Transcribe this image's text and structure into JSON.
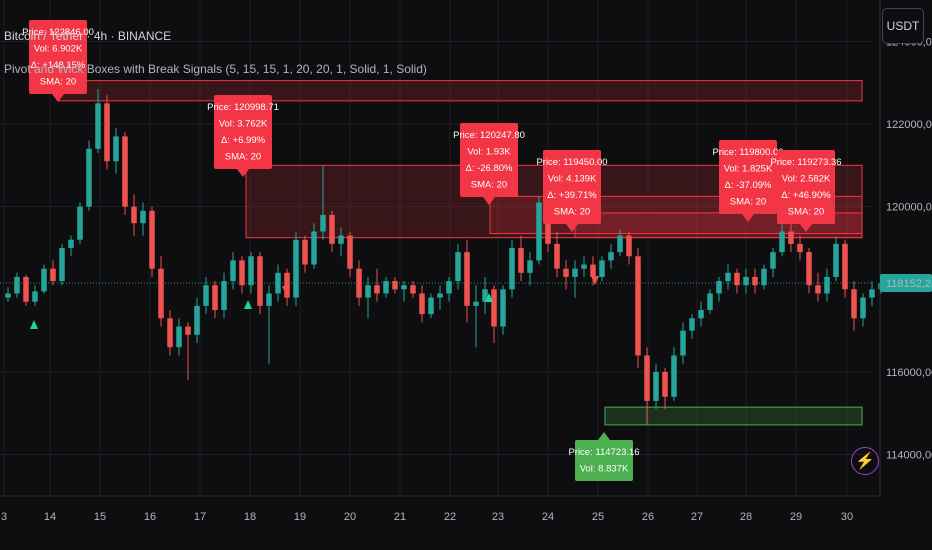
{
  "header": {
    "title": "Bitcoin / Tether · 4h · BINANCE",
    "study": "Pivot and Wick Boxes with Break Signals (5, 15, 15, 1, 20, 20, 1, Solid, 1, Solid)"
  },
  "currency_button": "USDT",
  "last_price": "118152,24",
  "colors": {
    "up": "#26a69a",
    "down": "#ef5350",
    "label_red": "#f23645",
    "label_green": "#4caf50",
    "accent": "#9c3fd1"
  },
  "icons": [
    "lightning-icon"
  ],
  "chart_data": {
    "type": "candlestick",
    "ylim": [
      113000,
      125000
    ],
    "y_ticks": [
      "124000,00",
      "122000,00",
      "120000,00",
      "116000,00",
      "114000,00"
    ],
    "x_ticks": [
      "3",
      "14",
      "15",
      "16",
      "17",
      "18",
      "19",
      "20",
      "21",
      "22",
      "23",
      "24",
      "25",
      "26",
      "27",
      "28",
      "29",
      "30"
    ],
    "pivot_labels": [
      {
        "type": "high",
        "lines": [
          "Price: 122846.00",
          "Vol: 6.902K",
          "Δ: +148.15%",
          "SMA: 20"
        ]
      },
      {
        "type": "high",
        "lines": [
          "Price: 120998.71",
          "Vol: 3.762K",
          "Δ: +6.99%",
          "SMA: 20"
        ]
      },
      {
        "type": "high",
        "lines": [
          "Price: 120247.80",
          "Vol: 1.93K",
          "Δ: -26.80%",
          "SMA: 20"
        ]
      },
      {
        "type": "high",
        "lines": [
          "Price: 119450.00",
          "Vol: 4.139K",
          "Δ: +39.71%",
          "SMA: 20"
        ]
      },
      {
        "type": "high",
        "lines": [
          "Price: 119800.00",
          "Vol: 1.825K",
          "Δ: -37.09%",
          "SMA: 20"
        ]
      },
      {
        "type": "high",
        "lines": [
          "Price: 119273.36",
          "Vol: 2.582K",
          "Δ: +46.90%",
          "SMA: 20"
        ]
      },
      {
        "type": "low",
        "lines": [
          "Price: 114723.16",
          "Vol: 8.837K"
        ]
      }
    ],
    "wick_boxes": [
      {
        "type": "resistance",
        "price_top": 123050,
        "price_bottom": 122560
      },
      {
        "type": "resistance",
        "price_top": 121000,
        "price_bottom": 119250
      },
      {
        "type": "resistance",
        "price_top": 120250,
        "price_bottom": 119350
      },
      {
        "type": "resistance",
        "price_top": 119850,
        "price_bottom": 119250
      },
      {
        "type": "support",
        "price_top": 115150,
        "price_bottom": 114720
      }
    ],
    "candles": [
      [
        117800,
        118050,
        117700,
        117900
      ],
      [
        117900,
        118400,
        117800,
        118300
      ],
      [
        118300,
        118350,
        117600,
        117700
      ],
      [
        117700,
        118100,
        117600,
        117950
      ],
      [
        117950,
        118600,
        117900,
        118500
      ],
      [
        118500,
        118700,
        118100,
        118200
      ],
      [
        118200,
        119100,
        118100,
        119000
      ],
      [
        119000,
        119300,
        118800,
        119200
      ],
      [
        119200,
        120100,
        119100,
        120000
      ],
      [
        120000,
        121600,
        119900,
        121400
      ],
      [
        121400,
        122846,
        121300,
        122500
      ],
      [
        122500,
        122700,
        120900,
        121100
      ],
      [
        121100,
        121900,
        120800,
        121700
      ],
      [
        121700,
        121800,
        119800,
        120000
      ],
      [
        120000,
        120300,
        119300,
        119600
      ],
      [
        119600,
        120100,
        119300,
        119900
      ],
      [
        119900,
        120000,
        118300,
        118500
      ],
      [
        118500,
        118800,
        117100,
        117300
      ],
      [
        117300,
        117500,
        116400,
        116600
      ],
      [
        116600,
        117300,
        116400,
        117100
      ],
      [
        117100,
        117200,
        115800,
        116900
      ],
      [
        116900,
        117800,
        116700,
        117600
      ],
      [
        117600,
        118300,
        117400,
        118100
      ],
      [
        118100,
        118200,
        117300,
        117500
      ],
      [
        117500,
        118400,
        117300,
        118200
      ],
      [
        118200,
        118900,
        118000,
        118700
      ],
      [
        118700,
        118800,
        117900,
        118100
      ],
      [
        118100,
        118900,
        117900,
        118800
      ],
      [
        118800,
        118900,
        117400,
        117600
      ],
      [
        117600,
        118100,
        116200,
        117900
      ],
      [
        117900,
        118600,
        117700,
        118400
      ],
      [
        118400,
        118500,
        117600,
        117800
      ],
      [
        117800,
        119400,
        117600,
        119200
      ],
      [
        119200,
        119300,
        118400,
        118600
      ],
      [
        118600,
        119600,
        118500,
        119400
      ],
      [
        119400,
        120998,
        119200,
        119800
      ],
      [
        119800,
        119900,
        118900,
        119100
      ],
      [
        119100,
        119500,
        118800,
        119300
      ],
      [
        119300,
        119400,
        118300,
        118500
      ],
      [
        118500,
        118700,
        117600,
        117800
      ],
      [
        117800,
        118300,
        117300,
        118100
      ],
      [
        118100,
        118500,
        117700,
        117900
      ],
      [
        117900,
        118300,
        117800,
        118200
      ],
      [
        118200,
        118300,
        117900,
        118000
      ],
      [
        118000,
        118200,
        117700,
        118100
      ],
      [
        118100,
        118200,
        117800,
        117900
      ],
      [
        117900,
        118100,
        117200,
        117400
      ],
      [
        117400,
        117900,
        117300,
        117800
      ],
      [
        117800,
        118100,
        117500,
        117900
      ],
      [
        117900,
        118300,
        117700,
        118200
      ],
      [
        118200,
        119100,
        118000,
        118900
      ],
      [
        118900,
        119200,
        117200,
        117600
      ],
      [
        117600,
        118100,
        116600,
        117700
      ],
      [
        117700,
        118300,
        117400,
        118000
      ],
      [
        118000,
        118100,
        116700,
        117100
      ],
      [
        117100,
        118100,
        116900,
        118000
      ],
      [
        118000,
        119200,
        117800,
        119000
      ],
      [
        119000,
        119300,
        118200,
        118400
      ],
      [
        118400,
        118900,
        118100,
        118700
      ],
      [
        118700,
        120247,
        118600,
        120100
      ],
      [
        120100,
        120200,
        118900,
        119100
      ],
      [
        119100,
        119400,
        118300,
        118500
      ],
      [
        118500,
        118700,
        118000,
        118300
      ],
      [
        118300,
        118700,
        117800,
        118500
      ],
      [
        118500,
        118800,
        118300,
        118600
      ],
      [
        118600,
        118800,
        118100,
        118300
      ],
      [
        118300,
        118800,
        118200,
        118700
      ],
      [
        118700,
        119100,
        118500,
        118900
      ],
      [
        118900,
        119450,
        118800,
        119300
      ],
      [
        119300,
        119400,
        118600,
        118800
      ],
      [
        118800,
        119000,
        116100,
        116400
      ],
      [
        116400,
        116600,
        114723,
        115300
      ],
      [
        115300,
        116200,
        115100,
        116000
      ],
      [
        116000,
        116100,
        115100,
        115400
      ],
      [
        115400,
        116600,
        115300,
        116400
      ],
      [
        116400,
        117200,
        116200,
        117000
      ],
      [
        117000,
        117400,
        116800,
        117300
      ],
      [
        117300,
        117700,
        117100,
        117500
      ],
      [
        117500,
        118000,
        117400,
        117900
      ],
      [
        117900,
        118300,
        117700,
        118200
      ],
      [
        118200,
        118600,
        118000,
        118400
      ],
      [
        118400,
        118500,
        117900,
        118100
      ],
      [
        118100,
        118500,
        117900,
        118300
      ],
      [
        118300,
        118500,
        117900,
        118100
      ],
      [
        118100,
        118600,
        118000,
        118500
      ],
      [
        118500,
        119000,
        118300,
        118900
      ],
      [
        118900,
        119800,
        118800,
        119400
      ],
      [
        119400,
        119600,
        118900,
        119100
      ],
      [
        119100,
        119300,
        118700,
        118900
      ],
      [
        118900,
        119000,
        117900,
        118100
      ],
      [
        118100,
        118400,
        117700,
        117900
      ],
      [
        117900,
        118500,
        117700,
        118300
      ],
      [
        118300,
        119273,
        118200,
        119100
      ],
      [
        119100,
        119200,
        117800,
        118000
      ],
      [
        118000,
        118200,
        117000,
        117300
      ],
      [
        117300,
        117900,
        117100,
        117800
      ],
      [
        117800,
        118200,
        117600,
        118000
      ],
      [
        118000,
        118300,
        117900,
        118152
      ]
    ]
  }
}
